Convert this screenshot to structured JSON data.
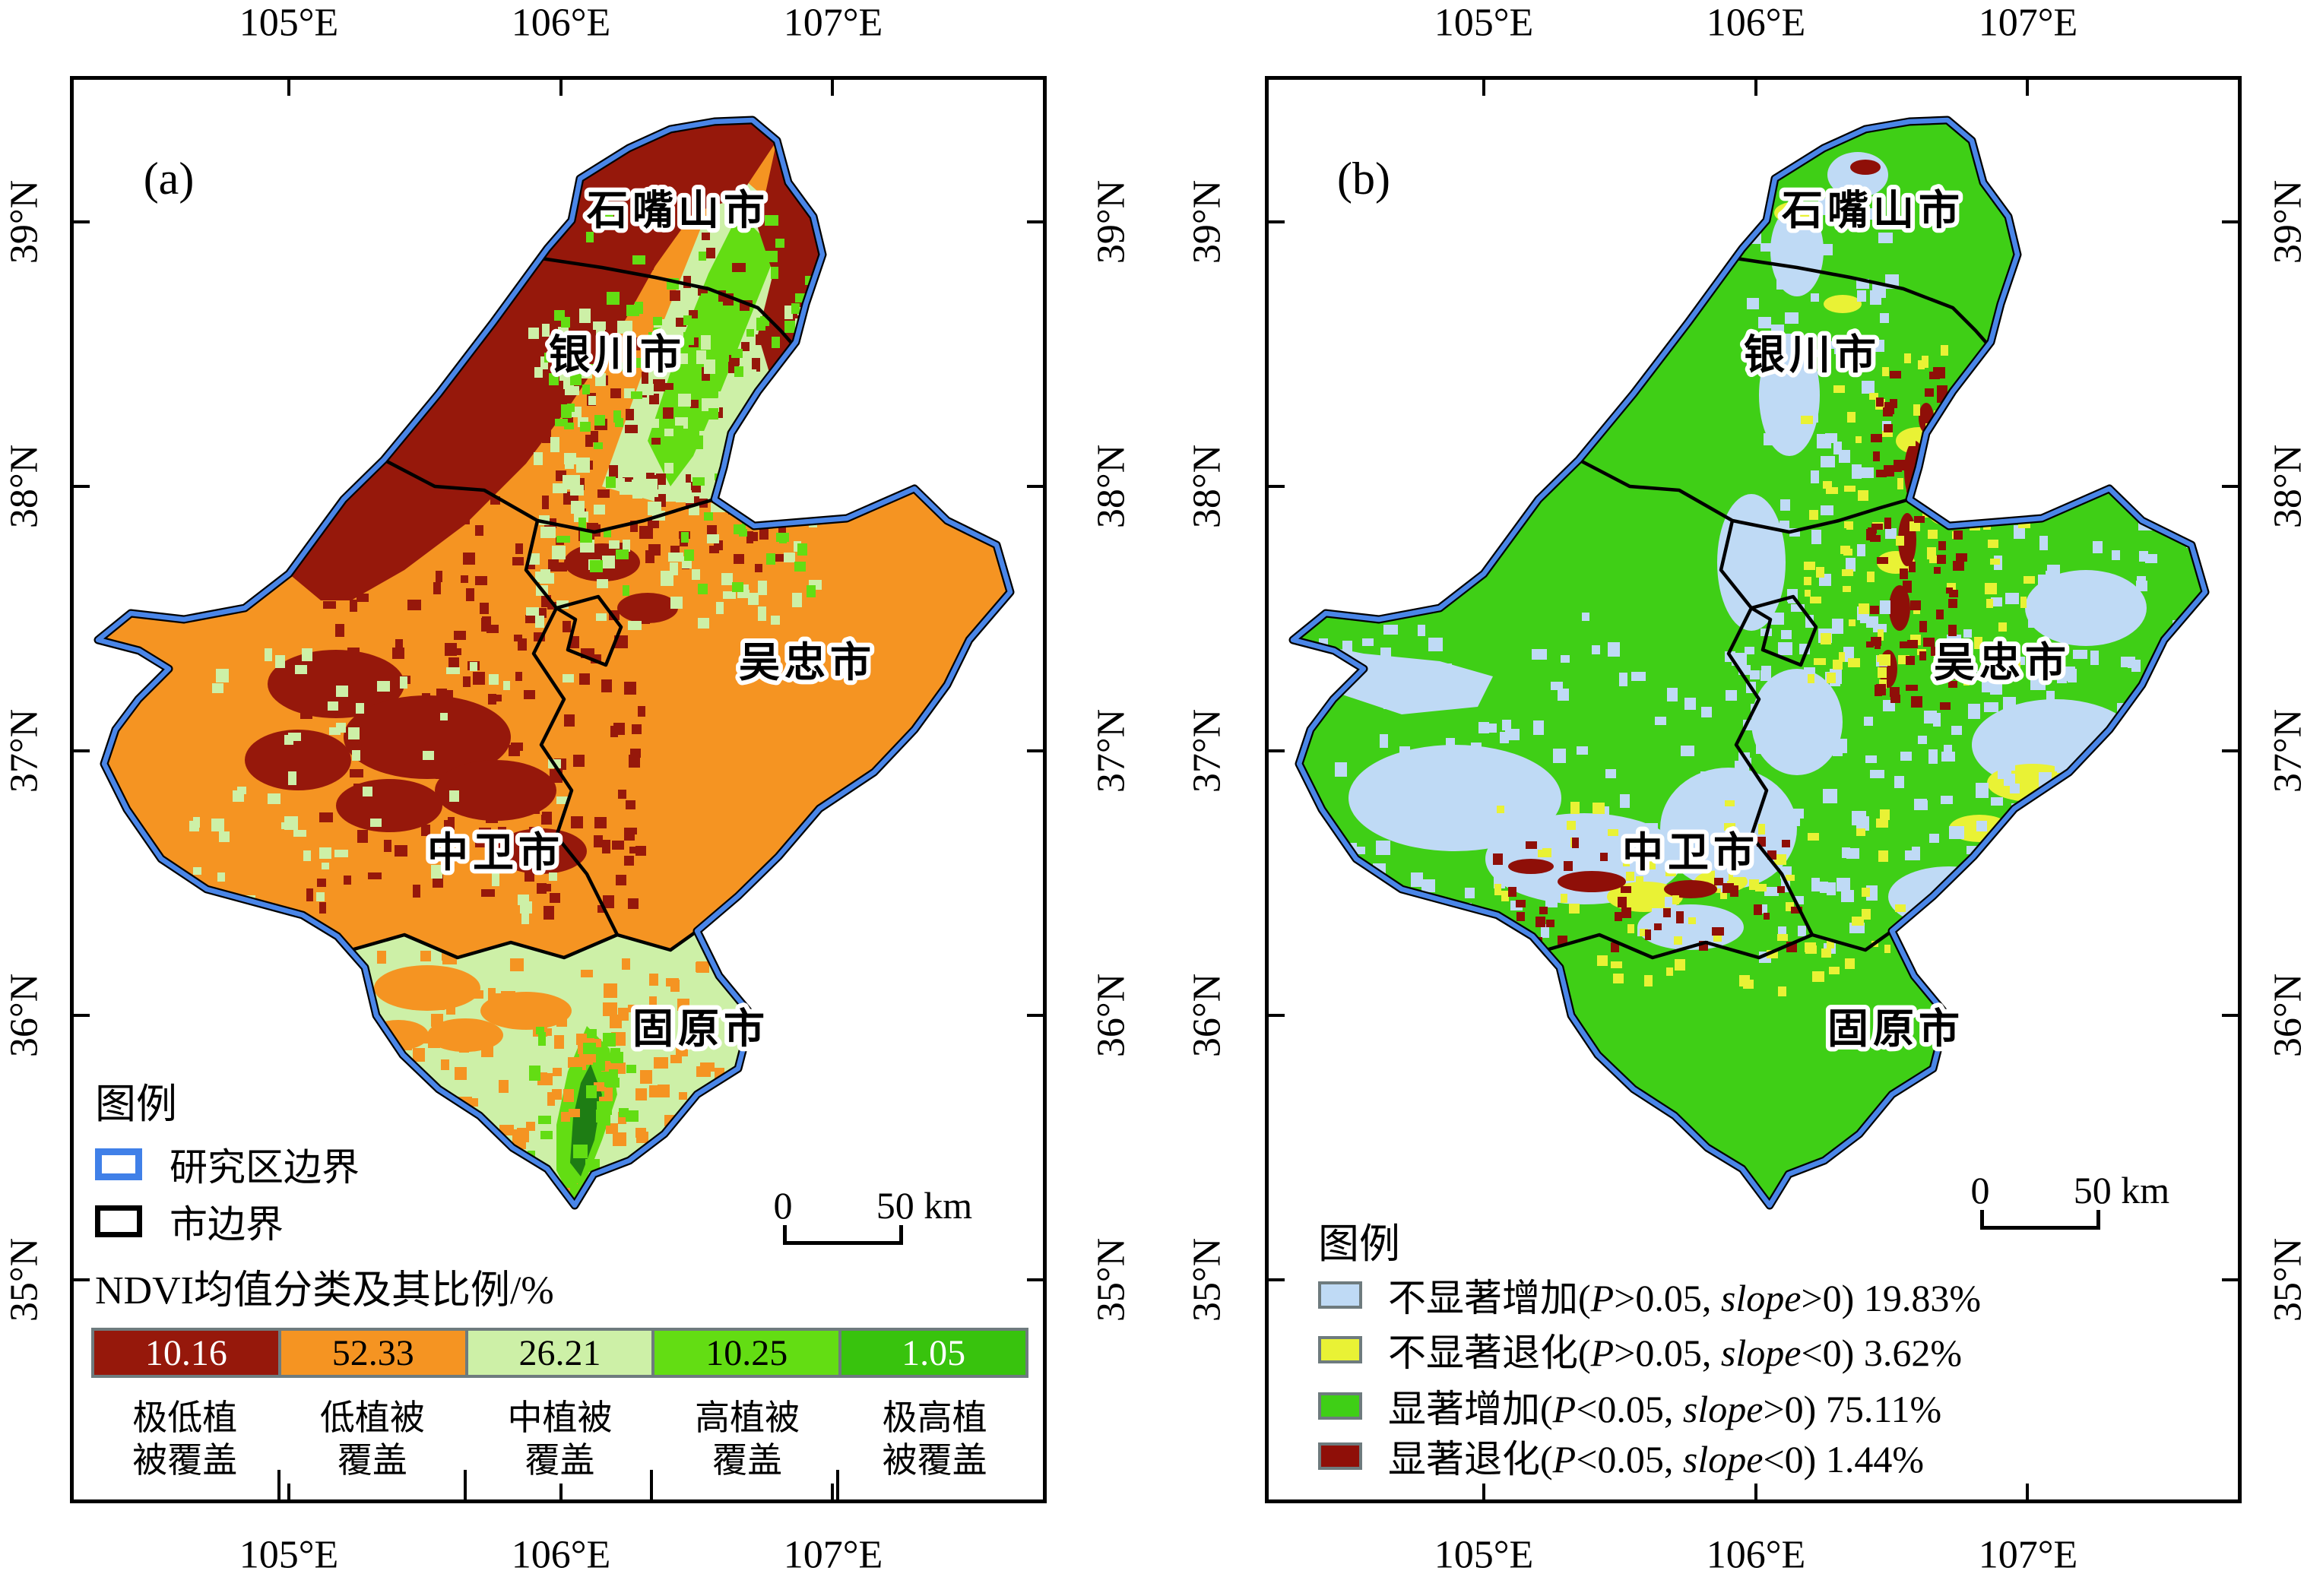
{
  "figure": {
    "panel_a_label": "(a)",
    "panel_b_label": "(b)",
    "lon_labels": [
      "105°E",
      "106°E",
      "107°E"
    ],
    "lat_labels": [
      "39°N",
      "38°N",
      "37°N",
      "36°N",
      "35°N"
    ],
    "cities": [
      "石嘴山市",
      "银川市",
      "吴忠市",
      "中卫市",
      "固原市"
    ]
  },
  "map_colors": {
    "boundary_blue": "#4a86e8",
    "boundary_black": "#000000",
    "city_line": "#000000",
    "bar_border": "#6e7b7e",
    "deep_green": "#1e7d14"
  },
  "legend_a": {
    "title": "图例",
    "study_boundary_label": "研究区边界",
    "city_boundary_label": "市边界",
    "colorbar_title": "NDVI均值分类及其比例/%",
    "classes": [
      {
        "value": "10.16",
        "color": "#96180b",
        "text_color": "#ffffff",
        "label_line1": "极低植",
        "label_line2": "被覆盖"
      },
      {
        "value": "52.33",
        "color": "#f59422",
        "text_color": "#000000",
        "label_line1": "低植被",
        "label_line2": "覆盖"
      },
      {
        "value": "26.21",
        "color": "#cdf0a7",
        "text_color": "#000000",
        "label_line1": "中植被",
        "label_line2": "覆盖"
      },
      {
        "value": "10.25",
        "color": "#63dd13",
        "text_color": "#000000",
        "label_line1": "高植被",
        "label_line2": "覆盖"
      },
      {
        "value": "1.05",
        "color": "#38c30d",
        "text_color": "#ffffff",
        "label_line1": "极高植",
        "label_line2": "被覆盖"
      }
    ]
  },
  "legend_b": {
    "title": "图例",
    "items": [
      {
        "color": "#bfdaf5",
        "name": "不显著增加",
        "open": "(",
        "p": "P",
        "p_rel": ">0.05, ",
        "slope": "slope",
        "s_rel": ">0) ",
        "pct": "19.83%"
      },
      {
        "color": "#e9f235",
        "name": "不显著退化",
        "open": "(",
        "p": "P",
        "p_rel": ">0.05, ",
        "slope": "slope",
        "s_rel": "<0) ",
        "pct": "3.62%"
      },
      {
        "color": "#3fcf16",
        "name": "显著增加",
        "open": "(",
        "p": "P",
        "p_rel": "<0.05, ",
        "slope": "slope",
        "s_rel": ">0) ",
        "pct": "75.11%"
      },
      {
        "color": "#8f0f08",
        "name": "显著退化",
        "open": "(",
        "p": "P",
        "p_rel": "<0.05, ",
        "slope": "slope",
        "s_rel": "<0) ",
        "pct": "1.44%"
      }
    ]
  },
  "scalebar": {
    "zero": "0",
    "label": "50 km"
  }
}
